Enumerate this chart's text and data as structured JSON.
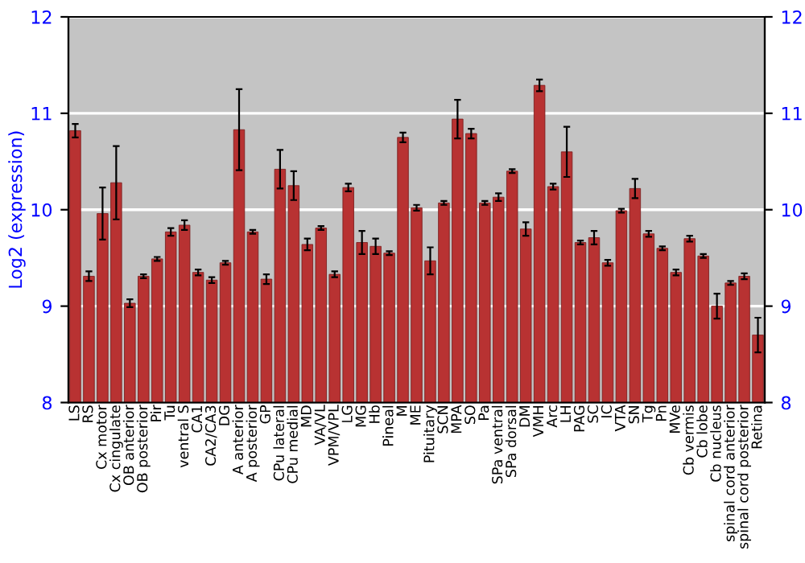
{
  "chart_data": {
    "type": "bar",
    "ylabel": "Log2 (expression)",
    "categories": [
      "LS",
      "RS",
      "Cx motor",
      "Cx cingulate",
      "OB anterior",
      "OB posterior",
      "Pir",
      "Tu",
      "ventral S",
      "CA1",
      "CA2/CA3",
      "DG",
      "A anterior",
      "A posterior",
      "GP",
      "CPu lateral",
      "CPu medial",
      "MD",
      "VA/VL",
      "VPM/VPL",
      "LG",
      "MG",
      "Hb",
      "Pineal",
      "M",
      "ME",
      "Pituitary",
      "SCN",
      "MPA",
      "SO",
      "Pa",
      "SPa ventral",
      "SPa dorsal",
      "DM",
      "VMH",
      "Arc",
      "LH",
      "PAG",
      "SC",
      "IC",
      "VTA",
      "SN",
      "Tg",
      "Pn",
      "MVe",
      "Cb vermis",
      "Cb lobe",
      "Cb nucleus",
      "spinal cord anterior",
      "spinal cord posterior",
      "Retina"
    ],
    "values": [
      10.82,
      9.31,
      9.96,
      10.28,
      9.03,
      9.31,
      9.49,
      9.77,
      9.84,
      9.35,
      9.27,
      9.45,
      10.83,
      9.77,
      9.28,
      10.42,
      10.25,
      9.64,
      9.81,
      9.33,
      10.23,
      9.66,
      9.62,
      9.55,
      10.75,
      10.02,
      9.47,
      10.07,
      10.94,
      10.79,
      10.07,
      10.13,
      10.4,
      9.8,
      11.29,
      10.24,
      10.6,
      9.66,
      9.71,
      9.45,
      9.99,
      10.22,
      9.75,
      9.6,
      9.35,
      9.7,
      9.52,
      9.0,
      9.24,
      9.31,
      8.7
    ],
    "errors": [
      0.07,
      0.05,
      0.27,
      0.38,
      0.04,
      0.02,
      0.02,
      0.04,
      0.05,
      0.03,
      0.03,
      0.02,
      0.42,
      0.02,
      0.05,
      0.2,
      0.15,
      0.06,
      0.02,
      0.03,
      0.04,
      0.12,
      0.08,
      0.02,
      0.05,
      0.03,
      0.14,
      0.02,
      0.2,
      0.05,
      0.02,
      0.04,
      0.02,
      0.07,
      0.06,
      0.03,
      0.26,
      0.02,
      0.07,
      0.03,
      0.02,
      0.1,
      0.03,
      0.02,
      0.03,
      0.03,
      0.02,
      0.13,
      0.02,
      0.03,
      0.18
    ],
    "color": "#b83232",
    "ylim": [
      8,
      12
    ],
    "yticks": [
      8,
      9,
      10,
      11,
      12
    ],
    "y2lim": [
      8,
      12
    ],
    "y2ticks": [
      8,
      9,
      10,
      11,
      12
    ],
    "grid": "y",
    "legend": false
  }
}
